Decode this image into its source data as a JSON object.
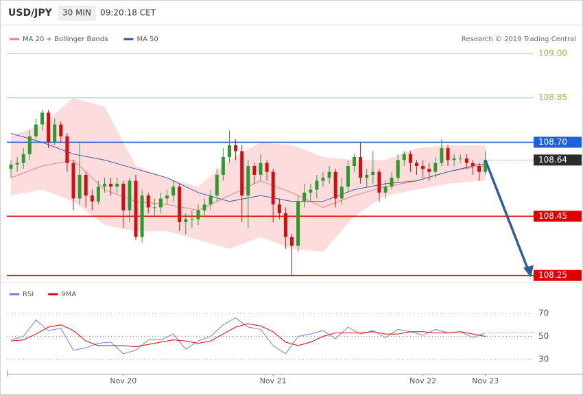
{
  "header": {
    "symbol": "USD/JPY",
    "interval": "30 MIN",
    "time": "09:20:18 CET"
  },
  "chart_data": [
    {
      "type": "candlestick",
      "legend": [
        "MA 20 + Bollinger Bands",
        "MA 50"
      ],
      "credit": "Research © 2019 Trading Central",
      "categories": [
        null,
        null,
        null,
        null,
        null,
        null,
        null,
        null,
        null,
        null,
        null,
        null,
        null,
        null,
        null,
        null,
        null,
        null,
        "Nov 20",
        null,
        null,
        null,
        null,
        null,
        null,
        null,
        null,
        null,
        null,
        null,
        null,
        null,
        null,
        null,
        null,
        null,
        null,
        null,
        null,
        null,
        null,
        null,
        "Nov 21",
        null,
        null,
        null,
        null,
        null,
        null,
        null,
        null,
        null,
        null,
        null,
        null,
        null,
        null,
        null,
        null,
        null,
        null,
        null,
        null,
        null,
        null,
        null,
        "Nov 22",
        null,
        null,
        null,
        null,
        null,
        null,
        null,
        null,
        null,
        "Nov 23"
      ],
      "open": [
        108.61,
        108.625,
        108.63,
        108.66,
        108.72,
        108.76,
        108.8,
        108.7,
        108.76,
        108.72,
        108.63,
        108.51,
        108.59,
        108.52,
        108.5,
        108.55,
        108.56,
        108.55,
        108.56,
        108.47,
        108.57,
        108.38,
        108.52,
        108.48,
        108.48,
        108.51,
        108.52,
        108.55,
        108.43,
        108.44,
        108.44,
        108.47,
        108.49,
        108.52,
        108.59,
        108.65,
        108.69,
        108.67,
        108.52,
        108.62,
        108.59,
        108.63,
        108.6,
        108.49,
        108.46,
        108.38,
        108.35,
        108.5,
        108.53,
        108.54,
        108.57,
        108.58,
        108.6,
        108.51,
        108.55,
        108.62,
        108.65,
        108.58,
        108.59,
        108.6,
        108.53,
        108.55,
        108.58,
        108.64,
        108.66,
        108.63,
        108.62,
        108.61,
        108.6,
        108.63,
        108.68,
        108.64,
        108.645,
        108.645,
        108.63,
        108.62,
        108.6
      ],
      "high": [
        108.64,
        108.65,
        108.68,
        108.74,
        108.78,
        108.81,
        108.81,
        108.78,
        108.77,
        108.73,
        108.64,
        108.7,
        108.6,
        108.54,
        108.57,
        108.58,
        108.58,
        108.58,
        108.57,
        108.58,
        108.59,
        108.54,
        108.53,
        108.51,
        108.53,
        108.54,
        108.57,
        108.56,
        108.46,
        108.47,
        108.49,
        108.51,
        108.54,
        108.61,
        108.68,
        108.74,
        108.71,
        108.69,
        108.64,
        108.63,
        108.66,
        108.64,
        108.61,
        108.51,
        108.48,
        108.39,
        108.52,
        108.56,
        108.56,
        108.59,
        108.6,
        108.62,
        108.61,
        108.58,
        108.64,
        108.66,
        108.7,
        108.61,
        108.67,
        108.61,
        108.57,
        108.6,
        108.66,
        108.67,
        108.67,
        108.64,
        108.64,
        108.63,
        108.65,
        108.71,
        108.69,
        108.66,
        108.66,
        108.66,
        108.64,
        108.63,
        108.67
      ],
      "low": [
        108.58,
        108.6,
        108.61,
        108.64,
        108.7,
        108.74,
        108.68,
        108.69,
        108.7,
        108.6,
        108.47,
        108.49,
        108.48,
        108.47,
        108.49,
        108.53,
        108.52,
        108.53,
        108.41,
        108.43,
        108.37,
        108.36,
        108.46,
        108.45,
        108.46,
        108.49,
        108.5,
        108.4,
        108.39,
        108.41,
        108.42,
        108.45,
        108.47,
        108.5,
        108.57,
        108.63,
        108.64,
        108.43,
        108.41,
        108.56,
        108.57,
        108.57,
        108.43,
        108.44,
        108.34,
        108.25,
        108.33,
        108.48,
        108.5,
        108.51,
        108.55,
        108.56,
        108.48,
        108.49,
        108.53,
        108.6,
        108.56,
        108.55,
        108.56,
        108.5,
        108.51,
        108.54,
        108.57,
        108.62,
        108.6,
        108.59,
        108.58,
        108.57,
        108.58,
        108.62,
        108.62,
        108.62,
        108.63,
        108.61,
        108.59,
        108.57,
        108.59
      ],
      "close": [
        108.625,
        108.63,
        108.66,
        108.72,
        108.76,
        108.8,
        108.7,
        108.76,
        108.72,
        108.63,
        108.51,
        108.59,
        108.52,
        108.5,
        108.55,
        108.56,
        108.55,
        108.56,
        108.47,
        108.57,
        108.38,
        108.52,
        108.48,
        108.48,
        108.51,
        108.52,
        108.55,
        108.43,
        108.44,
        108.44,
        108.47,
        108.49,
        108.52,
        108.59,
        108.65,
        108.69,
        108.67,
        108.52,
        108.62,
        108.59,
        108.63,
        108.6,
        108.49,
        108.46,
        108.38,
        108.35,
        108.5,
        108.53,
        108.54,
        108.57,
        108.58,
        108.6,
        108.51,
        108.55,
        108.62,
        108.65,
        108.58,
        108.59,
        108.6,
        108.53,
        108.55,
        108.58,
        108.64,
        108.66,
        108.63,
        108.62,
        108.61,
        108.6,
        108.63,
        108.68,
        108.64,
        108.645,
        108.645,
        108.63,
        108.62,
        108.6,
        108.64
      ],
      "up_color": "#2e9a2e",
      "down_color": "#d01010",
      "band": {
        "x": [
          0,
          5,
          10,
          15,
          20,
          25,
          30,
          35,
          40,
          45,
          50,
          55,
          60,
          65,
          70,
          75,
          76
        ],
        "upper": [
          108.72,
          108.76,
          108.85,
          108.82,
          108.62,
          108.58,
          108.55,
          108.64,
          108.7,
          108.69,
          108.65,
          108.64,
          108.64,
          108.68,
          108.69,
          108.69,
          108.69
        ],
        "lower": [
          108.52,
          108.54,
          108.5,
          108.42,
          108.4,
          108.4,
          108.37,
          108.34,
          108.38,
          108.34,
          108.33,
          108.45,
          108.52,
          108.54,
          108.56,
          108.57,
          108.57
        ],
        "color": "#fbd3d5"
      },
      "series": [
        {
          "name": "MA 20",
          "color": "#f08080",
          "x": [
            0,
            5,
            10,
            15,
            20,
            25,
            30,
            35,
            40,
            45,
            50,
            55,
            60,
            65,
            70,
            75,
            76
          ],
          "values": [
            108.58,
            108.62,
            108.64,
            108.54,
            108.5,
            108.49,
            108.47,
            108.52,
            108.57,
            108.53,
            108.48,
            108.52,
            108.55,
            108.57,
            108.6,
            108.62,
            108.62
          ]
        },
        {
          "name": "MA 50",
          "color": "#3a5fa0",
          "x": [
            0,
            5,
            10,
            15,
            20,
            25,
            30,
            35,
            40,
            45,
            50,
            55,
            60,
            65,
            70,
            75,
            76
          ],
          "values": [
            108.73,
            108.7,
            108.66,
            108.64,
            108.61,
            108.58,
            108.53,
            108.5,
            108.52,
            108.5,
            108.5,
            108.54,
            108.56,
            108.57,
            108.6,
            108.625,
            108.625
          ]
        }
      ],
      "legend_colors": [
        "#f08080",
        "#2f5b9a"
      ],
      "levels": [
        {
          "value": 109.0,
          "label": "109.00",
          "color": "#8cc63f",
          "style": "text"
        },
        {
          "value": 108.85,
          "label": "108.85",
          "color": "#8cc63f",
          "style": "text"
        },
        {
          "value": 108.7,
          "label": "108.70",
          "color": "#1f5fe0",
          "style": "tag"
        },
        {
          "value": 108.64,
          "label": "108.64",
          "color": "#2b2b2b",
          "style": "dotted"
        },
        {
          "value": 108.45,
          "label": "108.45",
          "color": "#dd0000",
          "style": "tag"
        },
        {
          "value": 108.25,
          "label": "108.25",
          "color": "#dd0000",
          "style": "tag"
        }
      ],
      "forecast_color": "#2f5b9a",
      "ylim": [
        108.24,
        109.04
      ]
    },
    {
      "type": "line",
      "legend": [
        "RSI",
        "9MA"
      ],
      "series": [
        {
          "name": "RSI",
          "color": "#6a85e0",
          "x": [
            0,
            2,
            4,
            6,
            8,
            10,
            12,
            14,
            16,
            18,
            20,
            22,
            24,
            26,
            28,
            30,
            32,
            34,
            36,
            38,
            40,
            42,
            44,
            46,
            48,
            50,
            52,
            54,
            56,
            58,
            60,
            62,
            64,
            66,
            68,
            70,
            72,
            74,
            76
          ],
          "values": [
            47,
            50,
            64,
            55,
            57,
            38,
            40,
            44,
            45,
            35,
            38,
            47,
            47,
            52,
            39,
            46,
            50,
            60,
            66,
            58,
            56,
            42,
            35,
            50,
            52,
            55,
            48,
            58,
            52,
            55,
            49,
            56,
            54,
            51,
            56,
            53,
            54,
            49,
            53
          ]
        },
        {
          "name": "9MA",
          "color": "#e00000",
          "x": [
            0,
            2,
            4,
            6,
            8,
            10,
            12,
            14,
            16,
            18,
            20,
            22,
            24,
            26,
            28,
            30,
            32,
            34,
            36,
            38,
            40,
            42,
            44,
            46,
            48,
            50,
            52,
            54,
            56,
            58,
            60,
            62,
            64,
            66,
            68,
            70,
            72,
            74,
            76
          ],
          "values": [
            46,
            47,
            52,
            58,
            60,
            55,
            46,
            42,
            42,
            42,
            41,
            43,
            45,
            47,
            46,
            44,
            46,
            52,
            58,
            61,
            59,
            54,
            45,
            42,
            45,
            50,
            53,
            53,
            53,
            54,
            52,
            52,
            54,
            54,
            53,
            53,
            54,
            52,
            50
          ]
        }
      ],
      "ylim": [
        20,
        80
      ],
      "yticks": [
        30,
        50,
        70
      ]
    }
  ]
}
